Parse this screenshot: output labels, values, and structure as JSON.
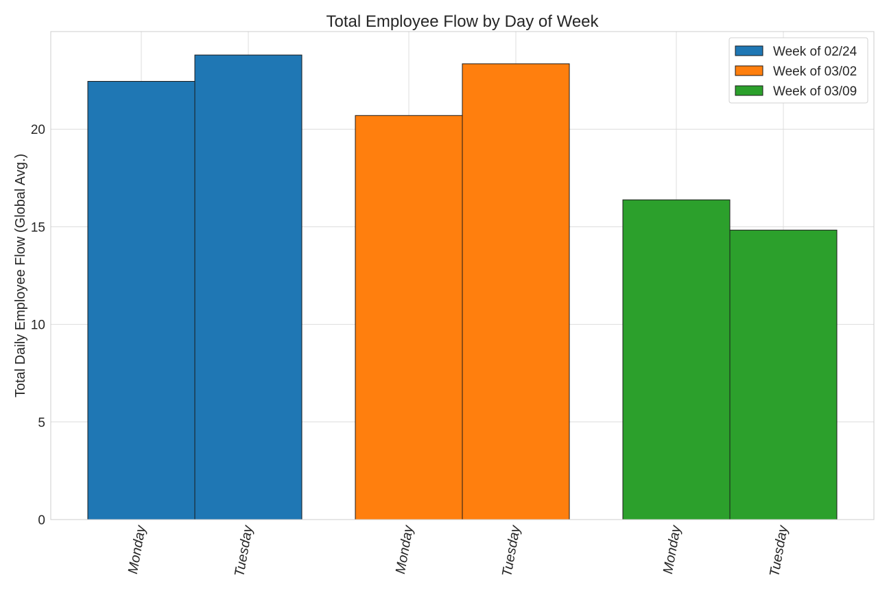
{
  "chart_data": {
    "type": "bar",
    "title": "Total Employee Flow by Day of Week",
    "xlabel": "",
    "ylabel": "Total Daily Employee Flow (Global Avg.)",
    "ylim": [
      0,
      25
    ],
    "yticks": [
      0,
      5,
      10,
      15,
      20
    ],
    "grid": true,
    "legend_position": "top-right",
    "series": [
      {
        "name": "Week of 02/24",
        "color": "#1f77b4",
        "categories": [
          "Monday",
          "Tuesday"
        ],
        "values": [
          22.45,
          23.8
        ]
      },
      {
        "name": "Week of 03/02",
        "color": "#ff7f0e",
        "categories": [
          "Monday",
          "Tuesday"
        ],
        "values": [
          20.7,
          23.35
        ]
      },
      {
        "name": "Week of 03/09",
        "color": "#2ca02c",
        "categories": [
          "Monday",
          "Tuesday"
        ],
        "values": [
          16.38,
          14.83
        ]
      }
    ]
  }
}
